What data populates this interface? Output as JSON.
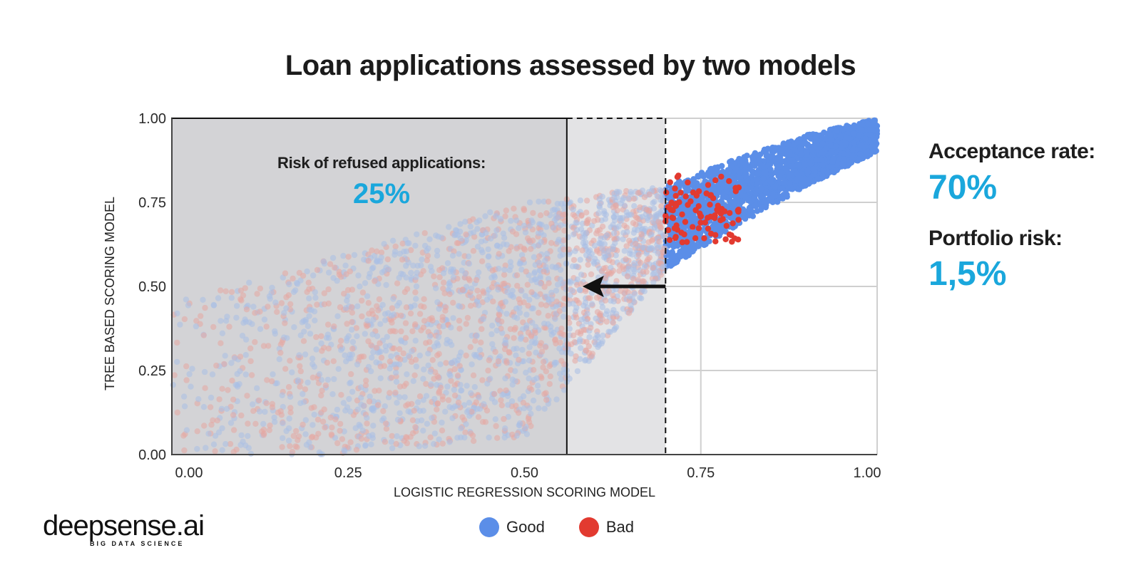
{
  "title": "Loan applications assessed by two models",
  "chart_data": {
    "type": "scatter",
    "title": "Loan applications assessed by two models",
    "xlabel": "LOGISTIC REGRESSION SCORING MODEL",
    "ylabel": "TREE BASED SCORING MODEL",
    "xlim": [
      0,
      1
    ],
    "ylim": [
      0,
      1
    ],
    "x_ticks": [
      "0.00",
      "0.25",
      "0.50",
      "0.75",
      "1.00"
    ],
    "y_ticks": [
      "0.00",
      "0.25",
      "0.50",
      "0.75",
      "1.00"
    ],
    "grid": true,
    "legend_position": "bottom",
    "series": [
      {
        "name": "Good",
        "color": "#5b8ee8"
      },
      {
        "name": "Bad",
        "color": "#e23a30"
      }
    ],
    "approx_good_density_band": {
      "x": [
        0.0,
        0.25,
        0.5,
        0.7,
        0.8,
        0.9,
        1.0
      ],
      "y_low": [
        0.0,
        0.0,
        0.05,
        0.55,
        0.68,
        0.8,
        0.9
      ],
      "y_high": [
        0.45,
        0.6,
        0.75,
        0.8,
        0.88,
        0.95,
        1.0
      ]
    },
    "bad_cluster_center": {
      "x": 0.75,
      "y": 0.75
    },
    "annotations": [
      {
        "text": "Risk of refused applications:",
        "value": "25%"
      }
    ],
    "refused_region": {
      "x_max": 0.56
    },
    "cutoff_previous_x": 0.7,
    "cutoff_new_x": 0.56
  },
  "stats": {
    "acceptance_label": "Acceptance rate:",
    "acceptance_value": "70%",
    "risk_label": "Portfolio risk:",
    "risk_value": "1,5%"
  },
  "risk_box": {
    "label": "Risk of refused applications:",
    "value": "25%"
  },
  "legend": [
    {
      "label": "Good",
      "color": "#5b8ee8"
    },
    {
      "label": "Bad",
      "color": "#e23a30"
    }
  ],
  "logo": {
    "word": "deepsense.ai",
    "sub": "BIG DATA SCIENCE"
  },
  "colors": {
    "accent": "#1aa7dc",
    "good": "#5b8ee8",
    "bad": "#e23a30",
    "shade_dark": "#d3d3d6",
    "shade_light": "#e3e3e5"
  }
}
